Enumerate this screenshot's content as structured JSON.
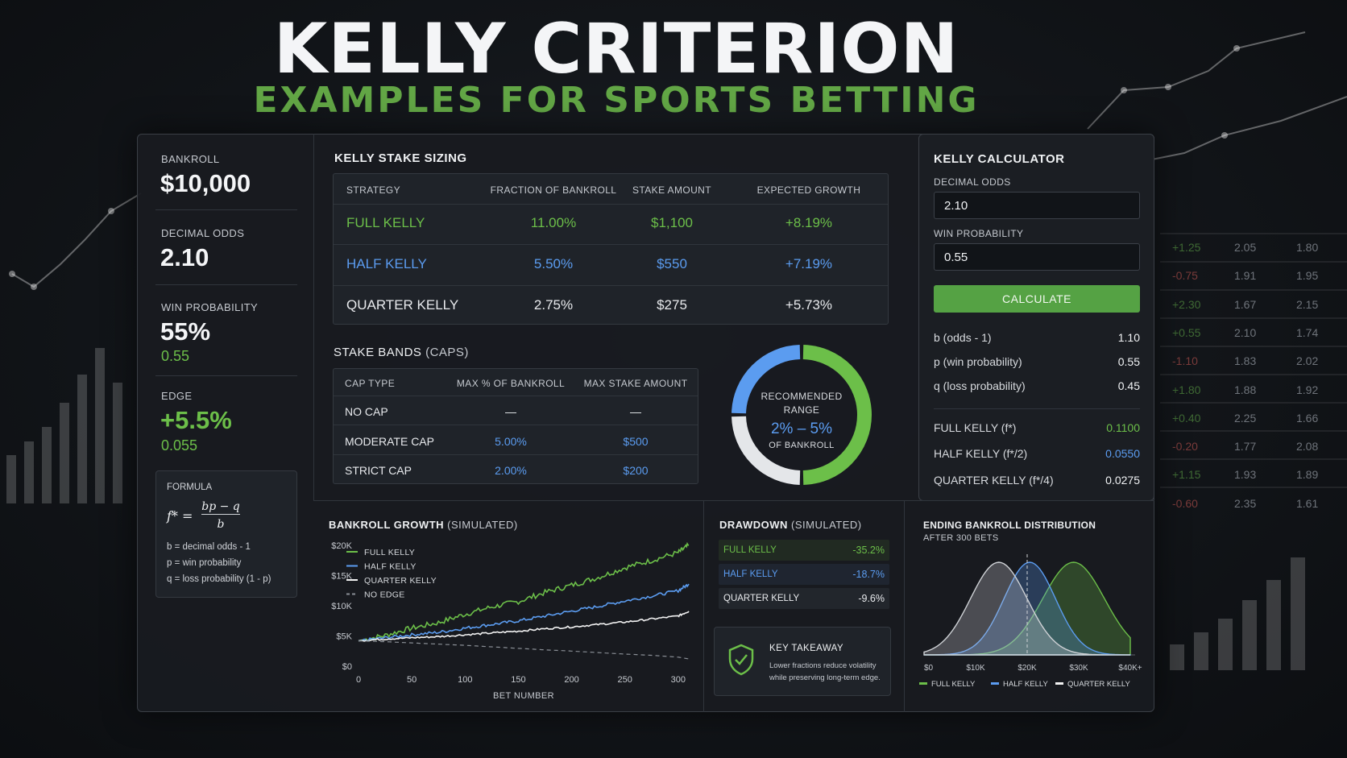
{
  "title": "KELLY CRITERION",
  "subtitle": "EXAMPLES FOR SPORTS BETTING",
  "left": {
    "bankroll_label": "BANKROLL",
    "bankroll_value": "$10,000",
    "odds_label": "DECIMAL ODDS",
    "odds_value": "2.10",
    "winprob_label": "WIN PROBABILITY",
    "winprob_value": "55%",
    "winprob_decimal": "0.55",
    "edge_label": "EDGE",
    "edge_value": "+5.5%",
    "edge_decimal": "0.055",
    "formula_label": "FORMULA",
    "formula_lhs": "f* =",
    "formula_num": "bp − q",
    "formula_den": "b",
    "formula_defs": [
      "b = decimal odds - 1",
      "p = win probability",
      "q = loss probability (1 - p)"
    ]
  },
  "stake_sizing": {
    "title": "KELLY STAKE SIZING",
    "headers": [
      "STRATEGY",
      "FRACTION OF BANKROLL",
      "STAKE AMOUNT",
      "EXPECTED GROWTH"
    ],
    "rows": [
      {
        "strategy": "FULL KELLY",
        "fraction": "11.00%",
        "stake": "$1,100",
        "growth": "+8.19%"
      },
      {
        "strategy": "HALF KELLY",
        "fraction": "5.50%",
        "stake": "$550",
        "growth": "+7.19%"
      },
      {
        "strategy": "QUARTER KELLY",
        "fraction": "2.75%",
        "stake": "$275",
        "growth": "+5.73%"
      }
    ]
  },
  "stake_bands": {
    "title": "STAKE BANDS",
    "title_suffix": "(CAPS)",
    "headers": [
      "CAP TYPE",
      "MAX % OF BANKROLL",
      "MAX STAKE AMOUNT"
    ],
    "rows": [
      {
        "type": "NO CAP",
        "pct": "—",
        "amount": "—"
      },
      {
        "type": "MODERATE CAP",
        "pct": "5.00%",
        "amount": "$500"
      },
      {
        "type": "STRICT CAP",
        "pct": "2.00%",
        "amount": "$200"
      }
    ]
  },
  "donut": {
    "line1": "RECOMMENDED",
    "line2": "RANGE",
    "range": "2% – 5%",
    "line3": "OF BANKROLL"
  },
  "calculator": {
    "title": "KELLY CALCULATOR",
    "odds_label": "DECIMAL ODDS",
    "odds_value": "2.10",
    "winprob_label": "WIN PROBABILITY",
    "winprob_value": "0.55",
    "button": "CALCULATE",
    "params": [
      {
        "label": "b (odds - 1)",
        "value": "1.10"
      },
      {
        "label": "p (win probability)",
        "value": "0.55"
      },
      {
        "label": "q (loss probability)",
        "value": "0.45"
      }
    ],
    "results": [
      {
        "label": "FULL KELLY (f*)",
        "value": "0.1100"
      },
      {
        "label": "HALF KELLY (f*/2)",
        "value": "0.0550"
      },
      {
        "label": "QUARTER KELLY (f*/4)",
        "value": "0.0275"
      }
    ]
  },
  "side_table": [
    [
      "+1.25",
      "2.05",
      "1.80"
    ],
    [
      "-0.75",
      "1.91",
      "1.95"
    ],
    [
      "+2.30",
      "1.67",
      "2.15"
    ],
    [
      "+0.55",
      "2.10",
      "1.74"
    ],
    [
      "-1.10",
      "1.83",
      "2.02"
    ],
    [
      "+1.80",
      "1.88",
      "1.92"
    ],
    [
      "+0.40",
      "2.25",
      "1.66"
    ],
    [
      "-0.20",
      "1.77",
      "2.08"
    ],
    [
      "+1.15",
      "1.93",
      "1.89"
    ],
    [
      "-0.60",
      "2.35",
      "1.61"
    ]
  ],
  "growth_chart": {
    "title": "BANKROLL GROWTH",
    "title_suffix": "(SIMULATED)",
    "xlabel": "BET NUMBER",
    "legend": [
      "FULL KELLY",
      "HALF KELLY",
      "QUARTER KELLY",
      "NO EDGE"
    ]
  },
  "drawdown": {
    "title": "DRAWDOWN",
    "title_suffix": "(SIMULATED)",
    "rows": [
      {
        "label": "FULL KELLY",
        "value": "-35.2%"
      },
      {
        "label": "HALF KELLY",
        "value": "-18.7%"
      },
      {
        "label": "QUARTER KELLY",
        "value": "-9.6%"
      }
    ],
    "takeaway_title": "KEY TAKEAWAY",
    "takeaway_line1": "Lower fractions reduce volatility",
    "takeaway_line2": "while preserving long-term edge."
  },
  "distribution": {
    "title": "ENDING BANKROLL DISTRIBUTION",
    "subtitle": "AFTER 300 BETS",
    "legend": [
      "FULL KELLY",
      "HALF KELLY",
      "QUARTER KELLY"
    ]
  },
  "colors": {
    "full": "#6cbf49",
    "half": "#5b9cf0",
    "quarter": "#f2f2f2",
    "none": "#8a8f96",
    "accent_green": "#62a645"
  },
  "chart_data": [
    {
      "type": "line",
      "title": "BANKROLL GROWTH (SIMULATED)",
      "xlabel": "BET NUMBER",
      "ylabel": "",
      "xlim": [
        0,
        310
      ],
      "ylim": [
        0,
        20000
      ],
      "x_ticks": [
        "0",
        "50",
        "100",
        "150",
        "200",
        "250",
        "300"
      ],
      "y_ticks": [
        "$0",
        "$5K",
        "$10K",
        "$15K",
        "$20K"
      ],
      "x": [
        0,
        25,
        50,
        75,
        100,
        125,
        150,
        175,
        200,
        225,
        250,
        275,
        300,
        310
      ],
      "series": [
        {
          "name": "FULL KELLY",
          "values": [
            4200,
            5100,
            6300,
            7200,
            8600,
            9800,
            10700,
            12200,
            13400,
            14700,
            16300,
            17500,
            18800,
            20000
          ]
        },
        {
          "name": "HALF KELLY",
          "values": [
            4200,
            4700,
            5200,
            5600,
            6300,
            6900,
            7500,
            8300,
            9100,
            9900,
            10800,
            11600,
            12500,
            13600
          ]
        },
        {
          "name": "QUARTER KELLY",
          "values": [
            4200,
            4500,
            4700,
            4900,
            5200,
            5500,
            5800,
            6200,
            6500,
            6900,
            7300,
            7800,
            8300,
            9100
          ]
        },
        {
          "name": "NO EDGE",
          "values": [
            4200,
            4050,
            3850,
            3650,
            3450,
            3200,
            2950,
            2700,
            2500,
            2250,
            2000,
            1800,
            1500,
            1200
          ]
        }
      ],
      "legend_position": "top-left"
    },
    {
      "type": "area",
      "title": "ENDING BANKROLL DISTRIBUTION",
      "subtitle": "AFTER 300 BETS",
      "x_ticks": [
        "$0",
        "$10K",
        "$20K",
        "$30K",
        "$40K+"
      ],
      "xlim": [
        0,
        40000
      ],
      "series": [
        {
          "name": "FULL KELLY",
          "mean": 29000,
          "sd": 6000
        },
        {
          "name": "HALF KELLY",
          "mean": 20500,
          "sd": 5000
        },
        {
          "name": "QUARTER KELLY",
          "mean": 14500,
          "sd": 5500
        }
      ],
      "marker_x": 20000,
      "legend_position": "bottom"
    },
    {
      "type": "pie",
      "title": "",
      "slices": [
        {
          "name": "green",
          "value": 50
        },
        {
          "name": "white",
          "value": 25
        },
        {
          "name": "blue",
          "value": 25
        }
      ]
    }
  ]
}
